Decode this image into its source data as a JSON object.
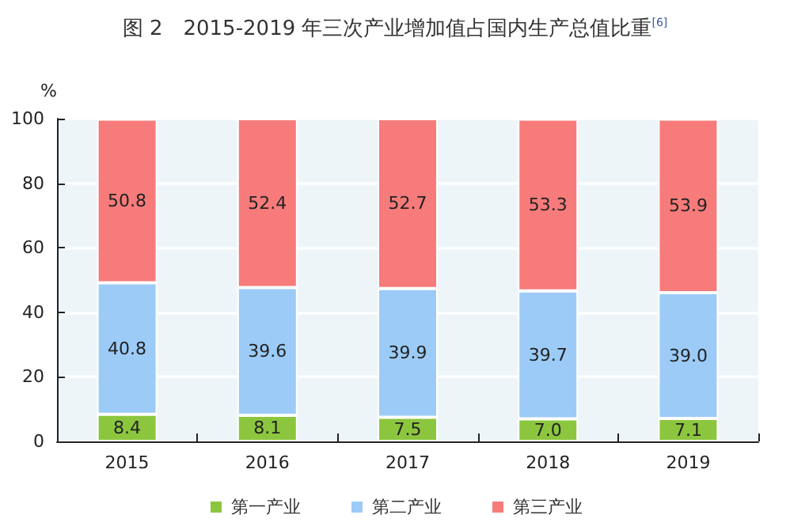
{
  "chart_data": {
    "type": "bar",
    "title": "图 2　2015-2019 年三次产业增加值占国内生产总值比重$^{[6]}$",
    "ylabel": "%",
    "categories": [
      "2015",
      "2016",
      "2017",
      "2018",
      "2019"
    ],
    "stacked": true,
    "series": [
      {
        "name": "第一产业",
        "color": "#8cc63e",
        "values": [
          8.4,
          8.1,
          7.5,
          7.0,
          7.1
        ],
        "value_labels": [
          "8.4",
          "8.1",
          "7.5",
          "7.0",
          "7.1"
        ]
      },
      {
        "name": "第二产业",
        "color": "#9ccbf7",
        "values": [
          40.8,
          39.6,
          39.9,
          39.7,
          39.0
        ],
        "value_labels": [
          "40.8",
          "39.6",
          "39.9",
          "39.7",
          "39.0"
        ]
      },
      {
        "name": "第三产业",
        "color": "#f77b7b",
        "values": [
          50.8,
          52.4,
          52.7,
          53.3,
          53.9
        ],
        "value_labels": [
          "50.8",
          "52.4",
          "52.7",
          "53.3",
          "53.9"
        ]
      }
    ],
    "ylim": [
      0,
      100.1
    ],
    "yticks": [
      0,
      20,
      40,
      60,
      80,
      100
    ],
    "grid": "y",
    "legend": "bottom"
  }
}
